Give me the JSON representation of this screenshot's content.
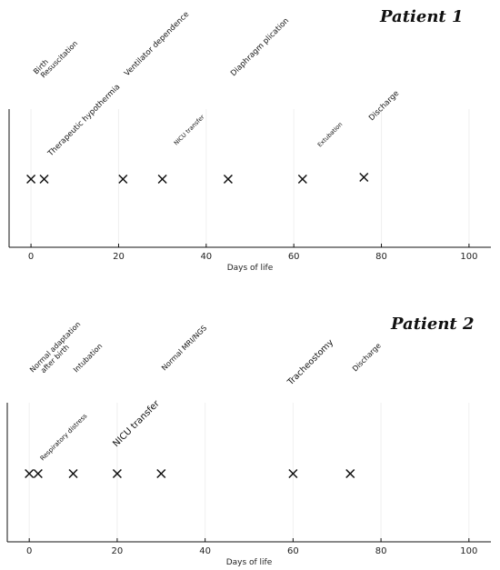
{
  "chart_data": [
    {
      "type": "scatter",
      "title": "Patient 1",
      "xlabel": "Days of life",
      "xlim": [
        -5,
        105
      ],
      "xticks": [
        0,
        20,
        40,
        60,
        80,
        100
      ],
      "grid": true,
      "marker": "x",
      "points": [
        {
          "day": 0,
          "label": "Birth"
        },
        {
          "day": 3,
          "label": "Resuscitation"
        },
        {
          "day": 3,
          "label": "Therapeutic hypothermia"
        },
        {
          "day": 21,
          "label": "Ventilator dependence"
        },
        {
          "day": 30,
          "label": "NICU transfer"
        },
        {
          "day": 45,
          "label": "Diaphragm plication"
        },
        {
          "day": 62,
          "label": "Extubation"
        },
        {
          "day": 76,
          "label": "Discharge"
        }
      ]
    },
    {
      "type": "scatter",
      "title": "Patient 2",
      "xlabel": "Days of life",
      "xlim": [
        -5,
        105
      ],
      "xticks": [
        0,
        20,
        40,
        60,
        80,
        100
      ],
      "grid": true,
      "marker": "x",
      "points": [
        {
          "day": 0,
          "label": "Normal adaptation after birth"
        },
        {
          "day": 2,
          "label": "Respiratory distress"
        },
        {
          "day": 10,
          "label": "Intubation"
        },
        {
          "day": 20,
          "label": "NICU transfer"
        },
        {
          "day": 30,
          "label": "Normal MRI/NGS"
        },
        {
          "day": 60,
          "label": "Tracheostomy"
        },
        {
          "day": 73,
          "label": "Discharge"
        }
      ]
    }
  ]
}
